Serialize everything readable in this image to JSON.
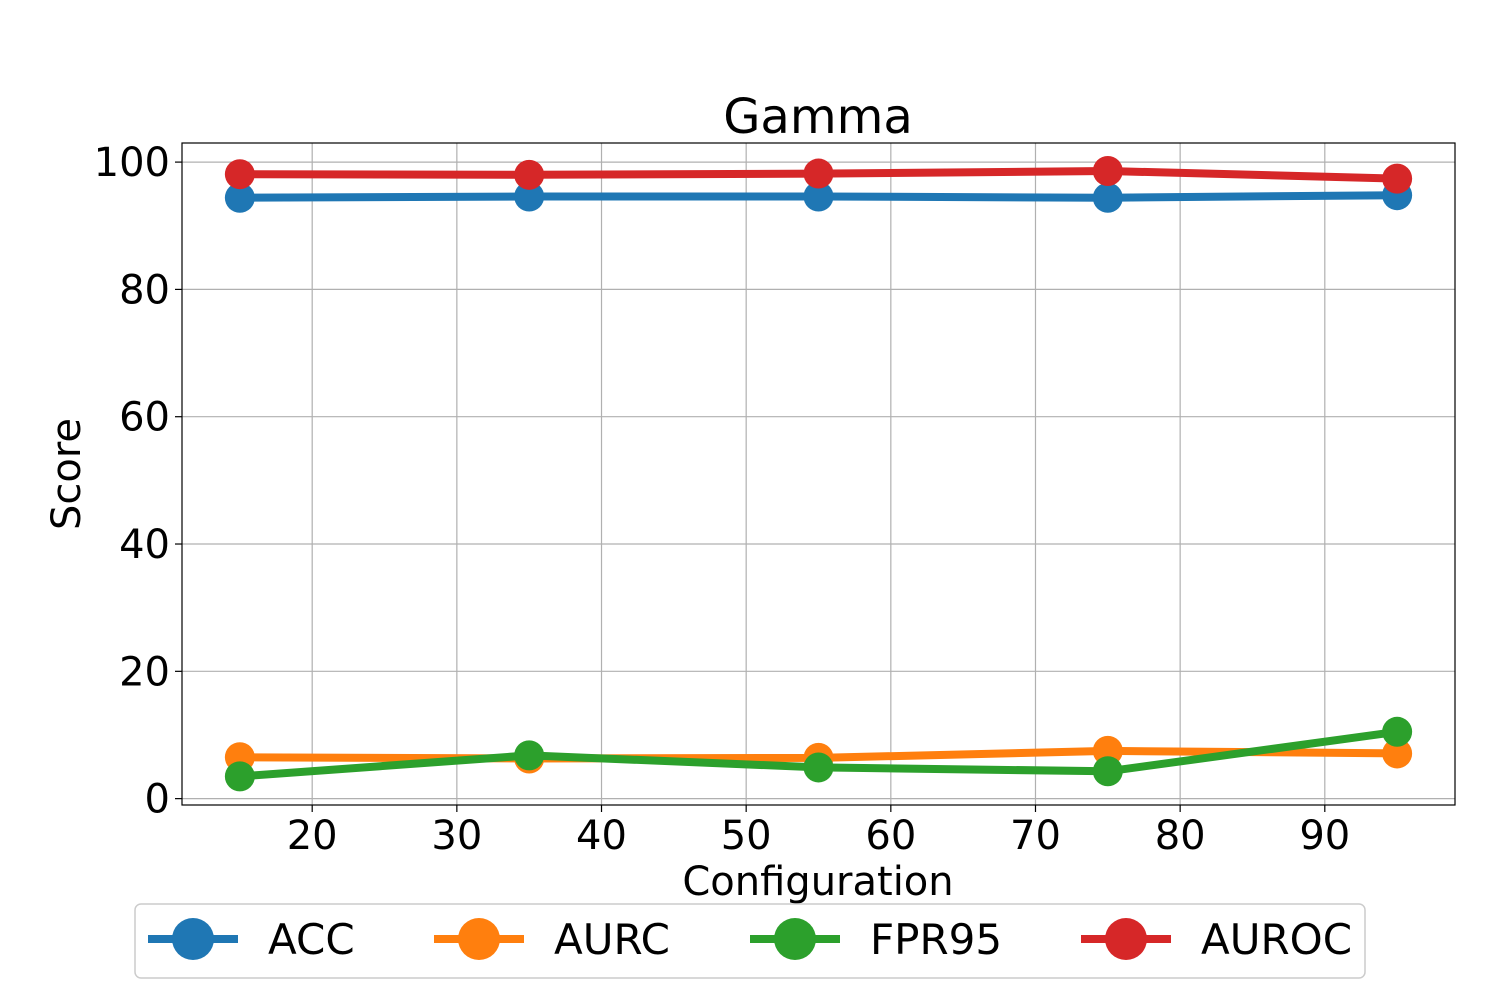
{
  "chart_data": {
    "type": "line",
    "title": "Gamma",
    "xlabel": "Configuration",
    "ylabel": "Score",
    "xlim": [
      11,
      99
    ],
    "ylim": [
      -1,
      103
    ],
    "xticks": [
      20,
      30,
      40,
      50,
      60,
      70,
      80,
      90
    ],
    "yticks": [
      0,
      20,
      40,
      60,
      80,
      100
    ],
    "grid": true,
    "legend_position": "bottom",
    "x": [
      15,
      35,
      55,
      75,
      95
    ],
    "series": [
      {
        "name": "ACC",
        "color": "#1f77b4",
        "values": [
          94.4,
          94.6,
          94.6,
          94.4,
          94.8
        ]
      },
      {
        "name": "AURC",
        "color": "#ff7f0e",
        "values": [
          6.5,
          6.3,
          6.4,
          7.5,
          7.1
        ]
      },
      {
        "name": "FPR95",
        "color": "#2ca02c",
        "values": [
          3.5,
          6.8,
          4.9,
          4.3,
          10.5
        ]
      },
      {
        "name": "AUROC",
        "color": "#d62728",
        "values": [
          98.1,
          98.0,
          98.2,
          98.6,
          97.4
        ]
      }
    ]
  }
}
